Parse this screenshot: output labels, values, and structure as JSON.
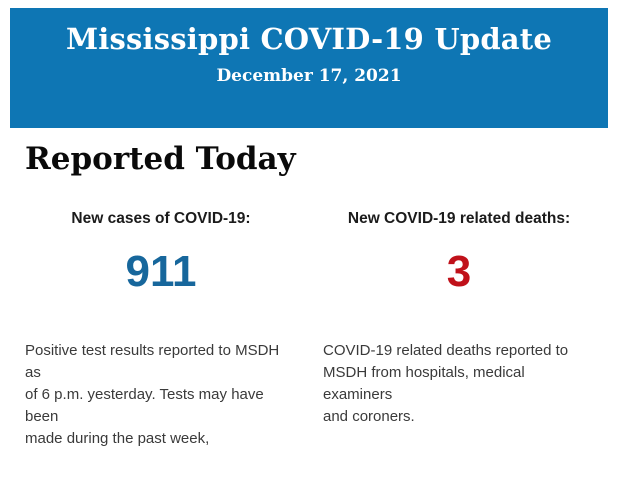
{
  "header": {
    "title": "Mississippi COVID-19 Update",
    "date": "December 17, 2021",
    "background_color": "#0e76b4",
    "text_color": "#ffffff"
  },
  "main": {
    "heading": "Reported Today",
    "stats": [
      {
        "label": "New cases of COVID-19:",
        "value": "911",
        "value_color": "#17679c",
        "description": "Positive test results reported to MSDH as\nof 6 p.m. yesterday. Tests may have been\nmade during the past week,"
      },
      {
        "label": "New COVID-19 related deaths:",
        "value": "3",
        "value_color": "#c0111a",
        "description": "COVID-19 related deaths reported to\nMSDH from hospitals, medical examiners\nand coroners."
      }
    ]
  }
}
